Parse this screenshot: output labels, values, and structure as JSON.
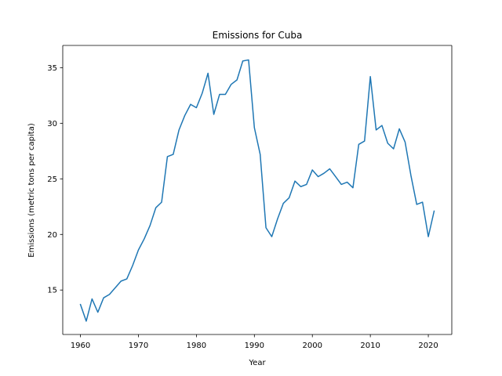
{
  "chart_data": {
    "type": "line",
    "title": "Emissions for Cuba",
    "xlabel": "Year",
    "ylabel": "Emissions (metric tons per capita)",
    "xlim": [
      1956.95,
      2024.05
    ],
    "ylim": [
      11.0,
      37.0
    ],
    "xticks": [
      1960,
      1970,
      1980,
      1990,
      2000,
      2010,
      2020
    ],
    "yticks": [
      15,
      20,
      25,
      30,
      35
    ],
    "grid": false,
    "series": [
      {
        "color": "#1f77b4",
        "x": [
          1960,
          1961,
          1962,
          1963,
          1964,
          1965,
          1966,
          1967,
          1968,
          1969,
          1970,
          1971,
          1972,
          1973,
          1974,
          1975,
          1976,
          1977,
          1978,
          1979,
          1980,
          1981,
          1982,
          1983,
          1984,
          1985,
          1986,
          1987,
          1988,
          1989,
          1990,
          1991,
          1992,
          1993,
          1994,
          1995,
          1996,
          1997,
          1998,
          1999,
          2000,
          2001,
          2002,
          2003,
          2004,
          2005,
          2006,
          2007,
          2008,
          2009,
          2010,
          2011,
          2012,
          2013,
          2014,
          2015,
          2016,
          2017,
          2018,
          2019,
          2020,
          2021
        ],
        "y": [
          13.7,
          12.2,
          14.2,
          13.0,
          14.3,
          14.6,
          15.2,
          15.8,
          16.0,
          17.2,
          18.6,
          19.6,
          20.8,
          22.4,
          22.9,
          27.0,
          27.2,
          29.4,
          30.7,
          31.7,
          31.4,
          32.7,
          34.5,
          30.8,
          32.6,
          32.6,
          33.5,
          33.9,
          35.6,
          35.7,
          29.6,
          27.2,
          20.6,
          19.8,
          21.4,
          22.8,
          23.3,
          24.8,
          24.3,
          24.5,
          25.8,
          25.2,
          25.5,
          25.9,
          25.2,
          24.5,
          24.7,
          24.2,
          28.1,
          28.4,
          34.2,
          29.4,
          29.8,
          28.2,
          27.7,
          29.5,
          28.3,
          25.3,
          22.7,
          22.9,
          19.8,
          22.1
        ]
      }
    ]
  }
}
